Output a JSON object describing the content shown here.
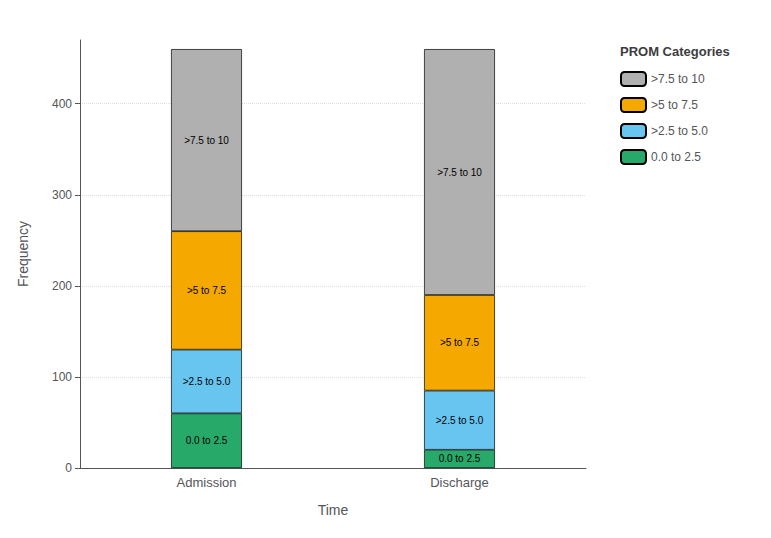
{
  "chart_data": {
    "type": "bar",
    "stacked": true,
    "categories": [
      "Admission",
      "Discharge"
    ],
    "series": [
      {
        "name": "0.0 to 2.5",
        "color": "#27a96a",
        "values": [
          60,
          20
        ]
      },
      {
        "name": ">2.5 to 5.0",
        "color": "#67c5ef",
        "values": [
          70,
          65
        ]
      },
      {
        "name": ">5 to 7.5",
        "color": "#f5a800",
        "values": [
          130,
          105
        ]
      },
      {
        "name": ">7.5 to 10",
        "color": "#b0b0b0",
        "values": [
          200,
          270
        ]
      }
    ],
    "annotations": [
      {
        "x": "Admission",
        "series": ">7.5 to 10",
        "text": ">7.5 to 10"
      },
      {
        "x": "Admission",
        "series": ">5 to 7.5",
        "text": ">5 to 7.5"
      },
      {
        "x": "Admission",
        "series": ">2.5 to 5.0",
        "text": ">2.5 to 5.0"
      },
      {
        "x": "Admission",
        "series": "0.0 to 2.5",
        "text": "0.0 to 2.5"
      },
      {
        "x": "Discharge",
        "series": ">7.5 to 10",
        "text": ">7.5 to 10"
      },
      {
        "x": "Discharge",
        "series": ">5 to 7.5",
        "text": ">5 to 7.5"
      },
      {
        "x": "Discharge",
        "series": ">2.5 to 5.0",
        "text": ">2.5 to 5.0"
      },
      {
        "x": "Discharge",
        "series": "0.0 to 2.5",
        "text": "0.0 to 2.5"
      }
    ],
    "xlabel": "Time",
    "ylabel": "Frequency",
    "legend_title": "PROM Categories",
    "legend": "right",
    "ylim": [
      0,
      470
    ],
    "yticks": [
      0,
      100,
      200,
      300,
      400
    ],
    "grid": true
  }
}
